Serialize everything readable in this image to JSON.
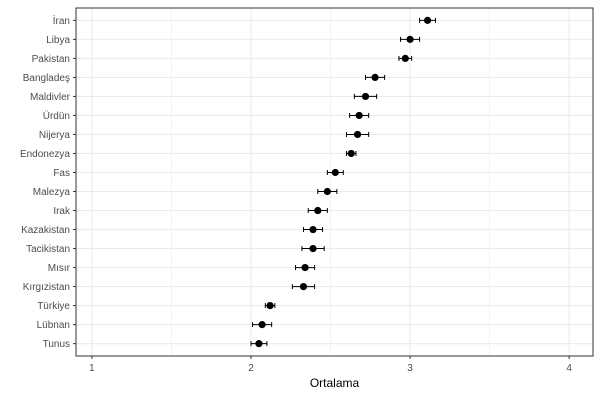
{
  "chart_data": {
    "type": "scatter",
    "title": "",
    "xlabel": "Ortalama",
    "ylabel": "",
    "xlim": [
      0.9,
      4.15
    ],
    "x_ticks": [
      1,
      2,
      3,
      4
    ],
    "x_tick_labels": [
      "1",
      "2",
      "3",
      "4"
    ],
    "grid": true,
    "legend": "none",
    "error_bars": true,
    "categories": [
      "İran",
      "Libya",
      "Pakistan",
      "Bangladeş",
      "Maldivler",
      "Ürdün",
      "Nijerya",
      "Endonezya",
      "Fas",
      "Malezya",
      "Irak",
      "Kazakistan",
      "Tacikistan",
      "Mısır",
      "Kırgızistan",
      "Türkiye",
      "Lübnan",
      "Tunus"
    ],
    "means": [
      3.11,
      3.0,
      2.97,
      2.78,
      2.72,
      2.68,
      2.67,
      2.63,
      2.53,
      2.48,
      2.42,
      2.39,
      2.39,
      2.34,
      2.33,
      2.12,
      2.07,
      2.05
    ],
    "ci_low": [
      3.06,
      2.94,
      2.93,
      2.72,
      2.65,
      2.62,
      2.6,
      2.6,
      2.48,
      2.42,
      2.36,
      2.33,
      2.32,
      2.28,
      2.26,
      2.09,
      2.01,
      2.0
    ],
    "ci_high": [
      3.16,
      3.06,
      3.01,
      2.84,
      2.79,
      2.74,
      2.74,
      2.66,
      2.58,
      2.54,
      2.48,
      2.45,
      2.46,
      2.4,
      2.4,
      2.15,
      2.13,
      2.1
    ],
    "colors": {
      "point": "#000000",
      "grid": "#ebebeb",
      "panel_border": "#333333",
      "background": "#ffffff"
    }
  }
}
